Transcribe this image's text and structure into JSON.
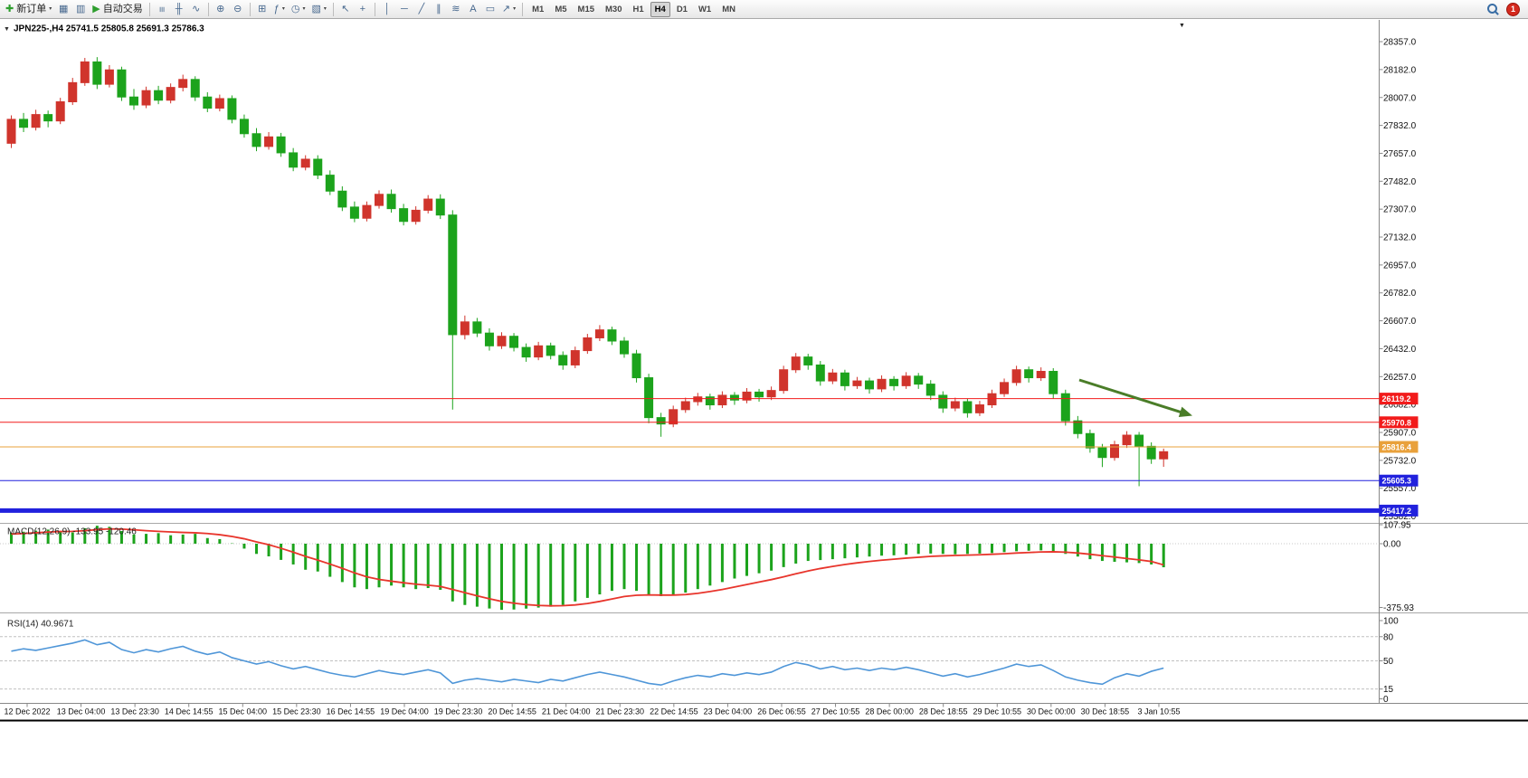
{
  "toolbar": {
    "new_order_label": "新订单",
    "autotrade_label": "自动交易",
    "buttons": [
      {
        "name": "new-order",
        "icon": "new-order-icon",
        "glyph": "✚",
        "glyph_color": "#2e9e2e",
        "label": "新订单",
        "caret": true
      },
      {
        "name": "new-chart",
        "icon": "chart-window-icon",
        "glyph": "▦"
      },
      {
        "name": "profiles",
        "icon": "profiles-icon",
        "glyph": "▥"
      },
      {
        "name": "autotrade",
        "icon": "play-icon",
        "glyph": "▶",
        "glyph_color": "#2e9e2e",
        "label": "自动交易"
      },
      {
        "sep": true
      },
      {
        "name": "bar-chart-mode",
        "icon": "bar-chart-icon",
        "glyph": "≡",
        "rot": 90
      },
      {
        "name": "candlestick-mode",
        "icon": "candlestick-icon",
        "glyph": "╫"
      },
      {
        "name": "line-chart-mode",
        "icon": "line-chart-icon",
        "glyph": "∿"
      },
      {
        "sep": true
      },
      {
        "name": "zoom-in",
        "icon": "zoom-in-icon",
        "glyph": "⊕"
      },
      {
        "name": "zoom-out",
        "icon": "zoom-out-icon",
        "glyph": "⊖"
      },
      {
        "sep": true
      },
      {
        "name": "tile-windows",
        "icon": "tile-windows-icon",
        "glyph": "⊞"
      },
      {
        "name": "indicators",
        "icon": "indicators-icon",
        "glyph": "ƒ",
        "caret": true
      },
      {
        "name": "periods",
        "icon": "clock-icon",
        "glyph": "◷",
        "caret": true
      },
      {
        "name": "templates",
        "icon": "template-icon",
        "glyph": "▧",
        "caret": true
      },
      {
        "sep": true
      },
      {
        "name": "cursor",
        "icon": "cursor-icon",
        "glyph": "↖"
      },
      {
        "name": "crosshair",
        "icon": "crosshair-icon",
        "glyph": "+"
      },
      {
        "sep": true
      },
      {
        "name": "vertical-line",
        "icon": "vertical-line-icon",
        "glyph": "│"
      },
      {
        "name": "horizontal-line",
        "icon": "horizontal-line-icon",
        "glyph": "─"
      },
      {
        "name": "trendline",
        "icon": "trendline-icon",
        "glyph": "╱"
      },
      {
        "name": "channel",
        "icon": "channel-icon",
        "glyph": "∥"
      },
      {
        "name": "fibonacci",
        "icon": "fibonacci-icon",
        "glyph": "≋"
      },
      {
        "name": "text",
        "icon": "text-icon",
        "glyph": "A"
      },
      {
        "name": "label",
        "icon": "label-icon",
        "glyph": "▭"
      },
      {
        "name": "arrows",
        "icon": "arrow-icon",
        "glyph": "↗",
        "caret": true
      },
      {
        "sep": true
      }
    ],
    "timeframes": [
      "M1",
      "M5",
      "M15",
      "M30",
      "H1",
      "H4",
      "D1",
      "W1",
      "MN"
    ],
    "active_timeframe": "H4",
    "notification_badge": "1"
  },
  "chart": {
    "symbol_title": "JPN225-,H4",
    "ohlc_text": "25741.5 25805.8 25691.3 25786.3"
  },
  "chart_data": {
    "type": "candlestick",
    "symbol": "JPN225-",
    "timeframe": "H4",
    "current_ohlc": {
      "open": 25741.5,
      "high": 25805.8,
      "low": 25691.3,
      "close": 25786.3
    },
    "price_axis": [
      "28357.0",
      "28182.0",
      "28007.0",
      "27832.0",
      "27657.0",
      "27482.0",
      "27307.0",
      "27132.0",
      "26957.0",
      "26782.0",
      "26607.0",
      "26432.0",
      "26257.0",
      "26082.0",
      "25907.0",
      "25732.0",
      "25557.0",
      "25382.0"
    ],
    "time_axis": [
      "12 Dec 2022",
      "13 Dec 04:00",
      "13 Dec 23:30",
      "14 Dec 14:55",
      "15 Dec 04:00",
      "15 Dec 23:30",
      "16 Dec 14:55",
      "19 Dec 04:00",
      "19 Dec 23:30",
      "20 Dec 14:55",
      "21 Dec 04:00",
      "21 Dec 23:30",
      "22 Dec 14:55",
      "23 Dec 04:00",
      "26 Dec 06:55",
      "27 Dec 10:55",
      "28 Dec 00:00",
      "28 Dec 18:55",
      "29 Dec 10:55",
      "30 Dec 00:00",
      "30 Dec 18:55",
      "3 Jan 10:55"
    ],
    "candles": [
      [
        27720,
        27895,
        27690,
        27870
      ],
      [
        27870,
        27910,
        27790,
        27820
      ],
      [
        27820,
        27930,
        27800,
        27900
      ],
      [
        27900,
        27925,
        27820,
        27860
      ],
      [
        27860,
        28005,
        27840,
        27980
      ],
      [
        27980,
        28130,
        27960,
        28100
      ],
      [
        28100,
        28255,
        28080,
        28230
      ],
      [
        28230,
        28260,
        28060,
        28090
      ],
      [
        28090,
        28210,
        28070,
        28180
      ],
      [
        28180,
        28200,
        27985,
        28010
      ],
      [
        28010,
        28060,
        27930,
        27960
      ],
      [
        27960,
        28075,
        27940,
        28050
      ],
      [
        28050,
        28080,
        27965,
        27990
      ],
      [
        27990,
        28095,
        27970,
        28070
      ],
      [
        28070,
        28150,
        28045,
        28120
      ],
      [
        28120,
        28140,
        27985,
        28010
      ],
      [
        28010,
        28040,
        27915,
        27940
      ],
      [
        27940,
        28025,
        27920,
        28000
      ],
      [
        28000,
        28020,
        27845,
        27870
      ],
      [
        27870,
        27900,
        27755,
        27780
      ],
      [
        27780,
        27815,
        27670,
        27700
      ],
      [
        27700,
        27790,
        27680,
        27760
      ],
      [
        27760,
        27785,
        27635,
        27660
      ],
      [
        27660,
        27690,
        27545,
        27570
      ],
      [
        27570,
        27645,
        27550,
        27620
      ],
      [
        27620,
        27645,
        27495,
        27520
      ],
      [
        27520,
        27550,
        27395,
        27420
      ],
      [
        27420,
        27450,
        27295,
        27320
      ],
      [
        27320,
        27355,
        27225,
        27250
      ],
      [
        27250,
        27355,
        27230,
        27330
      ],
      [
        27330,
        27425,
        27310,
        27400
      ],
      [
        27400,
        27430,
        27285,
        27310
      ],
      [
        27310,
        27340,
        27205,
        27230
      ],
      [
        27230,
        27325,
        27210,
        27300
      ],
      [
        27300,
        27395,
        27280,
        27370
      ],
      [
        27370,
        27400,
        27245,
        27270
      ],
      [
        27270,
        27300,
        26050,
        26520
      ],
      [
        26520,
        26640,
        26490,
        26600
      ],
      [
        26600,
        26625,
        26505,
        26530
      ],
      [
        26530,
        26560,
        26420,
        26450
      ],
      [
        26450,
        26535,
        26430,
        26510
      ],
      [
        26510,
        26530,
        26415,
        26440
      ],
      [
        26440,
        26465,
        26350,
        26380
      ],
      [
        26380,
        26475,
        26360,
        26450
      ],
      [
        26450,
        26470,
        26365,
        26390
      ],
      [
        26390,
        26415,
        26300,
        26330
      ],
      [
        26330,
        26445,
        26310,
        26420
      ],
      [
        26420,
        26525,
        26400,
        26500
      ],
      [
        26500,
        26580,
        26480,
        26550
      ],
      [
        26550,
        26570,
        26455,
        26480
      ],
      [
        26480,
        26505,
        26375,
        26400
      ],
      [
        26400,
        26425,
        26220,
        26250
      ],
      [
        26250,
        26275,
        25965,
        26000
      ],
      [
        26000,
        26030,
        25880,
        25960
      ],
      [
        25960,
        26075,
        25940,
        26050
      ],
      [
        26050,
        26125,
        26030,
        26100
      ],
      [
        26100,
        26155,
        26075,
        26130
      ],
      [
        26130,
        26150,
        26050,
        26080
      ],
      [
        26080,
        26165,
        26060,
        26140
      ],
      [
        26140,
        26160,
        26080,
        26110
      ],
      [
        26110,
        26185,
        26090,
        26160
      ],
      [
        26160,
        26180,
        26100,
        26130
      ],
      [
        26130,
        26195,
        26110,
        26170
      ],
      [
        26170,
        26325,
        26150,
        26300
      ],
      [
        26300,
        26405,
        26280,
        26380
      ],
      [
        26380,
        26400,
        26300,
        26330
      ],
      [
        26330,
        26355,
        26200,
        26230
      ],
      [
        26230,
        26305,
        26210,
        26280
      ],
      [
        26280,
        26300,
        26170,
        26200
      ],
      [
        26200,
        26255,
        26180,
        26230
      ],
      [
        26230,
        26250,
        26150,
        26180
      ],
      [
        26180,
        26265,
        26160,
        26240
      ],
      [
        26240,
        26260,
        26170,
        26200
      ],
      [
        26200,
        26285,
        26180,
        26260
      ],
      [
        26260,
        26280,
        26180,
        26210
      ],
      [
        26210,
        26235,
        26110,
        26140
      ],
      [
        26140,
        26165,
        26030,
        26060
      ],
      [
        26060,
        26125,
        26040,
        26100
      ],
      [
        26100,
        26120,
        26000,
        26030
      ],
      [
        26030,
        26105,
        26010,
        26080
      ],
      [
        26080,
        26175,
        26060,
        26150
      ],
      [
        26150,
        26245,
        26130,
        26220
      ],
      [
        26220,
        26325,
        26200,
        26300
      ],
      [
        26300,
        26320,
        26220,
        26250
      ],
      [
        26250,
        26315,
        26230,
        26290
      ],
      [
        26290,
        26310,
        26120,
        26150
      ],
      [
        26150,
        26175,
        25950,
        25980
      ],
      [
        25980,
        26010,
        25870,
        25900
      ],
      [
        25900,
        25925,
        25780,
        25810
      ],
      [
        25810,
        25835,
        25690,
        25750
      ],
      [
        25750,
        25855,
        25730,
        25830
      ],
      [
        25830,
        25915,
        25810,
        25890
      ],
      [
        25890,
        25910,
        25570,
        25820
      ],
      [
        25820,
        25845,
        25710,
        25741.5
      ],
      [
        25741.5,
        25805.8,
        25691.3,
        25786.3
      ]
    ],
    "levels": [
      {
        "price": 26119.2,
        "color": "#f21b1b",
        "tag": "26119.2",
        "width": 1
      },
      {
        "price": 25970.8,
        "color": "#f21b1b",
        "tag": "25970.8",
        "width": 1
      },
      {
        "price": 25816.4,
        "color": "#e9a13b",
        "tag": "25816.4",
        "width": 1
      },
      {
        "price": 25605.3,
        "color": "#2121dd",
        "tag": "25605.3",
        "width": 1
      },
      {
        "price": 25417.2,
        "color": "#2121dd",
        "tag": "25417.2",
        "width": 5
      }
    ],
    "macd": {
      "label": "MACD(12,26,9)",
      "main_value": "-133.95",
      "signal_value": "-120.46",
      "axis": [
        "107.95",
        "0.00",
        "-375.93"
      ],
      "histogram": [
        62,
        68,
        74,
        80,
        72,
        64,
        88,
        102,
        96,
        72,
        52,
        56,
        60,
        48,
        52,
        56,
        32,
        26,
        2,
        -28,
        -58,
        -72,
        -92,
        -118,
        -148,
        -158,
        -188,
        -218,
        -248,
        -258,
        -248,
        -238,
        -248,
        -258,
        -252,
        -262,
        -328,
        -348,
        -358,
        -368,
        -375.9,
        -374,
        -369,
        -363,
        -358,
        -348,
        -328,
        -308,
        -288,
        -268,
        -258,
        -268,
        -288,
        -298,
        -293,
        -278,
        -258,
        -238,
        -218,
        -198,
        -183,
        -168,
        -153,
        -133,
        -113,
        -98,
        -93,
        -88,
        -83,
        -78,
        -73,
        -68,
        -66,
        -63,
        -58,
        -56,
        -58,
        -60,
        -58,
        -56,
        -53,
        -48,
        -43,
        -40,
        -38,
        -43,
        -58,
        -73,
        -88,
        -98,
        -103,
        -106,
        -110,
        -118,
        -133.95
      ],
      "signal": [
        55,
        58,
        62,
        66,
        69,
        70,
        74,
        80,
        84,
        83,
        79,
        74,
        70,
        67,
        64,
        62,
        58,
        51,
        41,
        28,
        10,
        -6,
        -26,
        -48,
        -72,
        -93,
        -116,
        -140,
        -166,
        -188,
        -203,
        -213,
        -222,
        -230,
        -236,
        -243,
        -260,
        -278,
        -296,
        -313,
        -328,
        -338,
        -346,
        -351,
        -353,
        -352,
        -348,
        -340,
        -328,
        -314,
        -300,
        -293,
        -291,
        -292,
        -292,
        -289,
        -282,
        -272,
        -260,
        -246,
        -232,
        -218,
        -204,
        -188,
        -171,
        -155,
        -141,
        -129,
        -118,
        -109,
        -101,
        -94,
        -88,
        -82,
        -77,
        -72,
        -69,
        -67,
        -65,
        -63,
        -60,
        -57,
        -53,
        -50,
        -47,
        -46,
        -48,
        -53,
        -60,
        -68,
        -76,
        -84,
        -92,
        -101,
        -120.46
      ]
    },
    "rsi": {
      "label": "RSI(14)",
      "value": "40.9671",
      "axis": [
        "100",
        "80",
        "50",
        "15",
        "0"
      ],
      "level_lines": [
        80,
        50,
        15
      ],
      "series": [
        62,
        65,
        63,
        66,
        69,
        72,
        76,
        70,
        73,
        64,
        60,
        64,
        61,
        65,
        68,
        62,
        58,
        61,
        54,
        50,
        46,
        49,
        44,
        40,
        43,
        39,
        35,
        32,
        30,
        34,
        38,
        35,
        33,
        36,
        39,
        35,
        22,
        26,
        28,
        26,
        24,
        27,
        25,
        23,
        27,
        25,
        29,
        33,
        36,
        33,
        30,
        26,
        22,
        20,
        25,
        29,
        32,
        30,
        34,
        32,
        35,
        33,
        36,
        43,
        48,
        45,
        40,
        43,
        39,
        41,
        38,
        41,
        39,
        42,
        39,
        35,
        31,
        34,
        30,
        33,
        37,
        41,
        46,
        43,
        45,
        38,
        30,
        26,
        23,
        21,
        29,
        34,
        31,
        37,
        40.97
      ]
    },
    "colors": {
      "up": "#d0342c",
      "down": "#1ca31c",
      "macd_hist": "#1ca31c",
      "macd_signal": "#e8352c",
      "rsi_line": "#4f96d8",
      "arrow": "#4a7d28"
    }
  }
}
